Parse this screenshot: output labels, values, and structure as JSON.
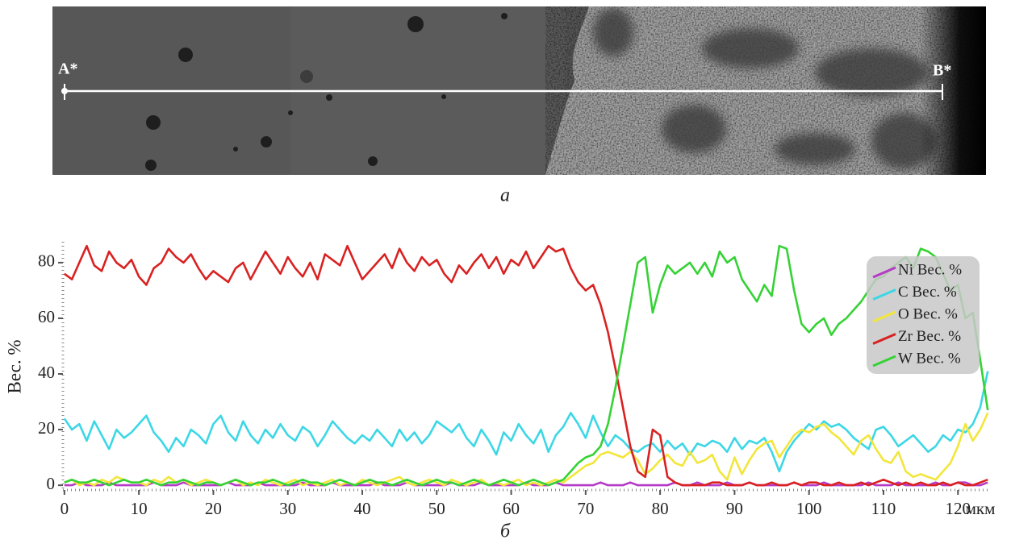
{
  "image": {
    "caption": "а",
    "point_a": "A*",
    "point_b": "B*"
  },
  "chart_data": {
    "type": "line",
    "caption": "б",
    "ylabel": "Вес. %",
    "xlabel": "мкм",
    "x": [
      0,
      1,
      2,
      3,
      4,
      5,
      6,
      7,
      8,
      9,
      10,
      11,
      12,
      13,
      14,
      15,
      16,
      17,
      18,
      19,
      20,
      21,
      22,
      23,
      24,
      25,
      26,
      27,
      28,
      29,
      30,
      31,
      32,
      33,
      34,
      35,
      36,
      37,
      38,
      39,
      40,
      41,
      42,
      43,
      44,
      45,
      46,
      47,
      48,
      49,
      50,
      51,
      52,
      53,
      54,
      55,
      56,
      57,
      58,
      59,
      60,
      61,
      62,
      63,
      64,
      65,
      66,
      67,
      68,
      69,
      70,
      71,
      72,
      73,
      74,
      75,
      76,
      77,
      78,
      79,
      80,
      81,
      82,
      83,
      84,
      85,
      86,
      87,
      88,
      89,
      90,
      91,
      92,
      93,
      94,
      95,
      96,
      97,
      98,
      99,
      100,
      101,
      102,
      103,
      104,
      105,
      106,
      107,
      108,
      109,
      110,
      111,
      112,
      113,
      114,
      115,
      116,
      117,
      118,
      119,
      120,
      121,
      122,
      123,
      124
    ],
    "xlim": [
      -0.2,
      124.2
    ],
    "xticks": [
      0,
      10,
      20,
      30,
      40,
      50,
      60,
      70,
      80,
      90,
      100,
      110,
      120
    ],
    "ylim": [
      -1.7,
      87.5
    ],
    "yticks": [
      0,
      20,
      40,
      60,
      80
    ],
    "series": [
      {
        "name": "Ni Вес. %",
        "color": "#b53ac6",
        "values": [
          0,
          0,
          1,
          0,
          0,
          0,
          1,
          0,
          0,
          0,
          0,
          0,
          1,
          0,
          0,
          0,
          1,
          0,
          0,
          0,
          0,
          0,
          1,
          0,
          0,
          0,
          1,
          0,
          0,
          0,
          0,
          0,
          1,
          0,
          0,
          0,
          1,
          0,
          0,
          0,
          0,
          0,
          1,
          0,
          0,
          0,
          1,
          0,
          0,
          0,
          0,
          0,
          1,
          0,
          0,
          0,
          1,
          0,
          0,
          0,
          0,
          0,
          1,
          0,
          0,
          0,
          1,
          0,
          0,
          0,
          0,
          0,
          1,
          0,
          0,
          0,
          1,
          0,
          0,
          0,
          0,
          0,
          1,
          0,
          0,
          1,
          0,
          0,
          0,
          1,
          0,
          0,
          1,
          0,
          0,
          0,
          0,
          0,
          1,
          0,
          0,
          0,
          1,
          0,
          0,
          0,
          0,
          0,
          1,
          0,
          0,
          0,
          1,
          0,
          0,
          0,
          0,
          1,
          0,
          0,
          1,
          1,
          0,
          0,
          1
        ]
      },
      {
        "name": "C Вес. %",
        "color": "#3cd7e6",
        "values": [
          24,
          20,
          22,
          16,
          23,
          18,
          13,
          20,
          17,
          19,
          22,
          25,
          19,
          16,
          12,
          17,
          14,
          20,
          18,
          15,
          22,
          25,
          19,
          16,
          23,
          18,
          15,
          20,
          17,
          22,
          18,
          16,
          21,
          19,
          14,
          18,
          23,
          20,
          17,
          15,
          18,
          16,
          20,
          17,
          14,
          20,
          16,
          19,
          15,
          18,
          23,
          21,
          19,
          22,
          17,
          14,
          20,
          16,
          11,
          19,
          16,
          22,
          18,
          15,
          20,
          12,
          18,
          21,
          26,
          22,
          17,
          25,
          19,
          14,
          18,
          16,
          13,
          12,
          14,
          15,
          12,
          16,
          13,
          15,
          11,
          15,
          14,
          16,
          15,
          12,
          17,
          13,
          16,
          15,
          17,
          12,
          5,
          12,
          16,
          19,
          22,
          20,
          23,
          21,
          22,
          20,
          17,
          15,
          13,
          20,
          21,
          18,
          14,
          16,
          18,
          15,
          12,
          14,
          18,
          16,
          20,
          19,
          22,
          28,
          41
        ]
      },
      {
        "name": "O Вес. %",
        "color": "#f2e63a",
        "values": [
          1,
          2,
          0,
          1,
          0,
          2,
          1,
          3,
          2,
          1,
          1,
          0,
          2,
          1,
          3,
          1,
          2,
          0,
          1,
          2,
          1,
          0,
          1,
          2,
          0,
          1,
          0,
          2,
          1,
          0,
          1,
          2,
          0,
          1,
          0,
          1,
          2,
          0,
          1,
          0,
          2,
          1,
          0,
          1,
          2,
          3,
          1,
          0,
          1,
          2,
          1,
          0,
          2,
          1,
          0,
          1,
          2,
          0,
          1,
          0,
          1,
          2,
          0,
          1,
          0,
          1,
          2,
          1,
          3,
          5,
          7,
          8,
          11,
          12,
          11,
          10,
          12,
          9,
          4,
          6,
          9,
          11,
          8,
          7,
          12,
          8,
          9,
          11,
          5,
          2,
          10,
          4,
          9,
          13,
          15,
          16,
          10,
          14,
          18,
          20,
          19,
          21,
          22,
          19,
          17,
          14,
          11,
          16,
          18,
          13,
          9,
          8,
          12,
          5,
          3,
          4,
          3,
          2,
          5,
          8,
          14,
          22,
          16,
          20,
          26
        ]
      },
      {
        "name": "Zr Вес. %",
        "color": "#d92121",
        "values": [
          76,
          74,
          80,
          86,
          79,
          77,
          84,
          80,
          78,
          81,
          75,
          72,
          78,
          80,
          85,
          82,
          80,
          83,
          78,
          74,
          77,
          75,
          73,
          78,
          80,
          74,
          79,
          84,
          80,
          76,
          82,
          78,
          75,
          80,
          74,
          83,
          81,
          79,
          86,
          80,
          74,
          77,
          80,
          83,
          78,
          85,
          80,
          77,
          82,
          79,
          81,
          76,
          73,
          79,
          76,
          80,
          83,
          78,
          82,
          76,
          81,
          79,
          84,
          78,
          82,
          86,
          84,
          85,
          78,
          73,
          70,
          72,
          65,
          55,
          42,
          28,
          14,
          5,
          3,
          20,
          18,
          3,
          1,
          0,
          0,
          0,
          0,
          1,
          1,
          0,
          0,
          0,
          1,
          0,
          0,
          1,
          0,
          0,
          1,
          0,
          1,
          1,
          0,
          0,
          1,
          0,
          0,
          1,
          0,
          1,
          2,
          1,
          0,
          1,
          0,
          1,
          0,
          0,
          1,
          0,
          1,
          0,
          0,
          1,
          2
        ]
      },
      {
        "name": "W Вес. %",
        "color": "#35d235",
        "values": [
          1,
          2,
          1,
          1,
          2,
          1,
          0,
          1,
          2,
          1,
          1,
          2,
          1,
          0,
          1,
          1,
          2,
          1,
          0,
          1,
          1,
          0,
          1,
          2,
          1,
          0,
          1,
          1,
          2,
          1,
          0,
          1,
          2,
          1,
          1,
          0,
          1,
          2,
          1,
          0,
          1,
          2,
          1,
          1,
          0,
          1,
          2,
          1,
          0,
          1,
          2,
          1,
          1,
          0,
          1,
          2,
          1,
          0,
          1,
          2,
          1,
          0,
          1,
          2,
          1,
          0,
          1,
          2,
          5,
          8,
          10,
          11,
          14,
          22,
          35,
          50,
          65,
          80,
          82,
          62,
          72,
          79,
          76,
          78,
          80,
          76,
          80,
          75,
          84,
          80,
          82,
          74,
          70,
          66,
          72,
          68,
          86,
          85,
          70,
          58,
          55,
          58,
          60,
          54,
          58,
          60,
          63,
          66,
          70,
          74,
          75,
          78,
          80,
          82,
          78,
          85,
          84,
          82,
          76,
          70,
          72,
          60,
          62,
          45,
          27
        ]
      }
    ]
  }
}
